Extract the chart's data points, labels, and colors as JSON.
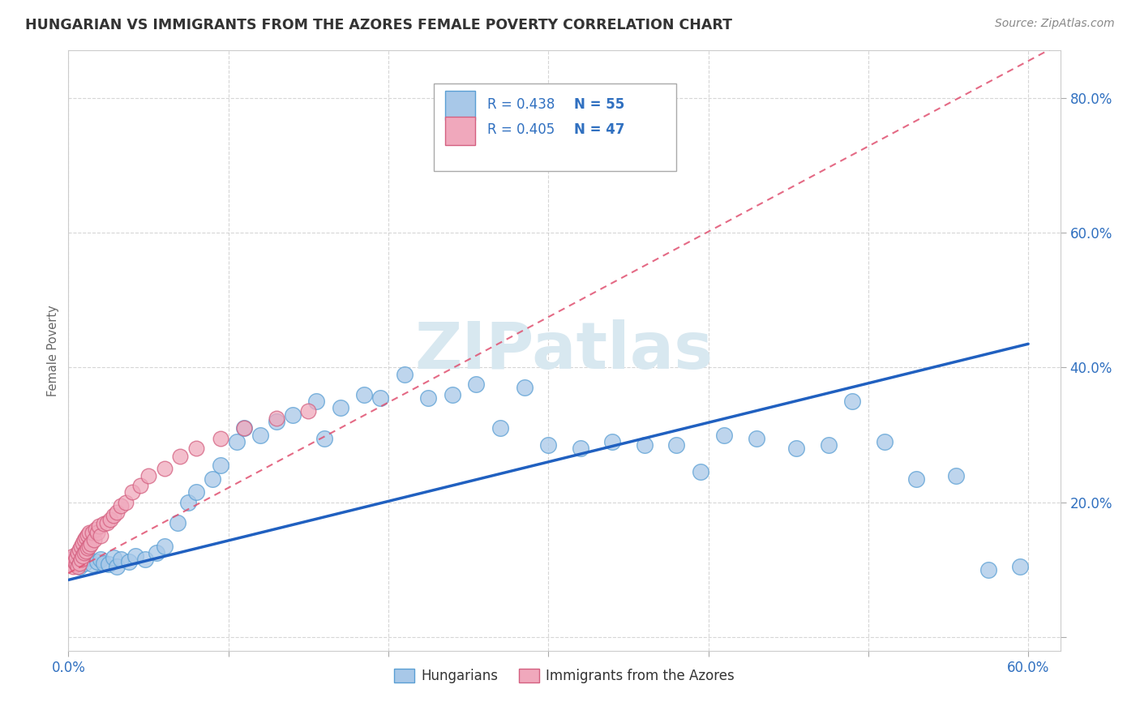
{
  "title": "HUNGARIAN VS IMMIGRANTS FROM THE AZORES FEMALE POVERTY CORRELATION CHART",
  "source": "Source: ZipAtlas.com",
  "ylabel": "Female Poverty",
  "bottom_legend": [
    "Hungarians",
    "Immigrants from the Azores"
  ],
  "blue_color": "#a8c8e8",
  "blue_edge_color": "#5a9fd4",
  "pink_color": "#f0a8bc",
  "pink_edge_color": "#d46080",
  "blue_trend_color": "#2060c0",
  "pink_trend_color": "#e05070",
  "grid_color": "#cccccc",
  "title_color": "#333333",
  "source_color": "#888888",
  "tick_color": "#3070c0",
  "ylabel_color": "#666666",
  "watermark_color": "#d8e8f0",
  "legend_box_color": "#aaaaaa",
  "xlim": [
    0.0,
    0.62
  ],
  "ylim": [
    -0.02,
    0.87
  ],
  "blue_x": [
    0.003,
    0.005,
    0.007,
    0.01,
    0.012,
    0.015,
    0.018,
    0.02,
    0.022,
    0.025,
    0.028,
    0.03,
    0.033,
    0.038,
    0.042,
    0.048,
    0.055,
    0.06,
    0.068,
    0.075,
    0.08,
    0.09,
    0.095,
    0.105,
    0.11,
    0.12,
    0.13,
    0.14,
    0.155,
    0.16,
    0.17,
    0.185,
    0.195,
    0.21,
    0.225,
    0.24,
    0.255,
    0.27,
    0.285,
    0.3,
    0.32,
    0.34,
    0.36,
    0.38,
    0.395,
    0.41,
    0.43,
    0.455,
    0.475,
    0.49,
    0.51,
    0.53,
    0.555,
    0.575,
    0.595
  ],
  "blue_y": [
    0.115,
    0.12,
    0.105,
    0.11,
    0.118,
    0.108,
    0.112,
    0.115,
    0.11,
    0.108,
    0.118,
    0.105,
    0.115,
    0.112,
    0.12,
    0.115,
    0.125,
    0.135,
    0.17,
    0.2,
    0.215,
    0.235,
    0.255,
    0.29,
    0.31,
    0.3,
    0.32,
    0.33,
    0.35,
    0.295,
    0.34,
    0.36,
    0.355,
    0.39,
    0.355,
    0.36,
    0.375,
    0.31,
    0.37,
    0.285,
    0.28,
    0.29,
    0.285,
    0.285,
    0.245,
    0.3,
    0.295,
    0.28,
    0.285,
    0.35,
    0.29,
    0.235,
    0.24,
    0.1,
    0.105
  ],
  "pink_x": [
    0.001,
    0.002,
    0.003,
    0.003,
    0.004,
    0.005,
    0.005,
    0.006,
    0.006,
    0.007,
    0.007,
    0.008,
    0.008,
    0.009,
    0.009,
    0.01,
    0.01,
    0.011,
    0.011,
    0.012,
    0.012,
    0.013,
    0.013,
    0.014,
    0.015,
    0.016,
    0.017,
    0.018,
    0.019,
    0.02,
    0.022,
    0.024,
    0.026,
    0.028,
    0.03,
    0.033,
    0.036,
    0.04,
    0.045,
    0.05,
    0.06,
    0.07,
    0.08,
    0.095,
    0.11,
    0.13,
    0.15
  ],
  "pink_y": [
    0.115,
    0.11,
    0.105,
    0.12,
    0.112,
    0.108,
    0.118,
    0.105,
    0.125,
    0.11,
    0.13,
    0.115,
    0.135,
    0.12,
    0.14,
    0.125,
    0.145,
    0.128,
    0.148,
    0.132,
    0.152,
    0.135,
    0.155,
    0.138,
    0.155,
    0.145,
    0.16,
    0.155,
    0.165,
    0.15,
    0.168,
    0.17,
    0.175,
    0.18,
    0.185,
    0.195,
    0.2,
    0.215,
    0.225,
    0.24,
    0.25,
    0.268,
    0.28,
    0.295,
    0.31,
    0.325,
    0.335
  ],
  "blue_trend_x0": 0.0,
  "blue_trend_y0": 0.085,
  "blue_trend_x1": 0.6,
  "blue_trend_y1": 0.435,
  "pink_trend_x0": 0.0,
  "pink_trend_y0": 0.095,
  "pink_trend_x1": 0.62,
  "pink_trend_y1": 0.88,
  "legend_r1": "R = 0.438",
  "legend_n1": "N = 55",
  "legend_r2": "R = 0.405",
  "legend_n2": "N = 47"
}
